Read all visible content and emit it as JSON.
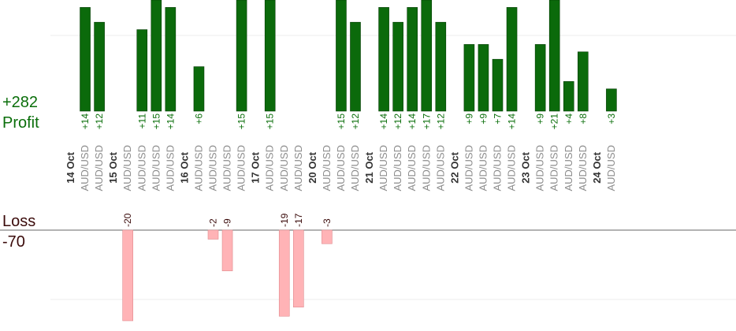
{
  "summary": {
    "profit_total": "+282",
    "profit_label": "Profit",
    "loss_label": "Loss",
    "loss_total": "-70"
  },
  "colors": {
    "profit_bar": "#0b6a0b",
    "loss_bar": "#ffb3b6",
    "profit_text": "#0a6e0a",
    "loss_text": "#3a0a0a",
    "instrument_text": "#8c8c8c",
    "date_text": "#333333"
  },
  "chart_data": {
    "type": "bar",
    "profit_display_max": 15,
    "loss_display_max": 20,
    "columns": [
      {
        "date": "14 Oct"
      },
      {
        "instrument": "AUD/USD",
        "value": 14,
        "label": "+14"
      },
      {
        "instrument": "AUD/USD",
        "value": 12,
        "label": "+12"
      },
      {
        "date": "15 Oct"
      },
      {
        "instrument": "AUD/USD",
        "value": -20,
        "label": "-20"
      },
      {
        "instrument": "AUD/USD",
        "value": 11,
        "label": "+11"
      },
      {
        "instrument": "AUD/USD",
        "value": 15,
        "label": "+15"
      },
      {
        "instrument": "AUD/USD",
        "value": 14,
        "label": "+14"
      },
      {
        "date": "16 Oct"
      },
      {
        "instrument": "AUD/USD",
        "value": 6,
        "label": "+6"
      },
      {
        "instrument": "AUD/USD",
        "value": -2,
        "label": "-2"
      },
      {
        "instrument": "AUD/USD",
        "value": -9,
        "label": "-9"
      },
      {
        "instrument": "AUD/USD",
        "value": 15,
        "label": "+15"
      },
      {
        "date": "17 Oct"
      },
      {
        "instrument": "AUD/USD",
        "value": 15,
        "label": "+15"
      },
      {
        "instrument": "AUD/USD",
        "value": -19,
        "label": "-19"
      },
      {
        "instrument": "AUD/USD",
        "value": -17,
        "label": "-17"
      },
      {
        "date": "20 Oct"
      },
      {
        "instrument": "AUD/USD",
        "value": -3,
        "label": "-3"
      },
      {
        "instrument": "AUD/USD",
        "value": 15,
        "label": "+15"
      },
      {
        "instrument": "AUD/USD",
        "value": 12,
        "label": "+12"
      },
      {
        "date": "21 Oct"
      },
      {
        "instrument": "AUD/USD",
        "value": 14,
        "label": "+14"
      },
      {
        "instrument": "AUD/USD",
        "value": 12,
        "label": "+12"
      },
      {
        "instrument": "AUD/USD",
        "value": 14,
        "label": "+14"
      },
      {
        "instrument": "AUD/USD",
        "value": 17,
        "label": "+17"
      },
      {
        "instrument": "AUD/USD",
        "value": 12,
        "label": "+12"
      },
      {
        "date": "22 Oct"
      },
      {
        "instrument": "AUD/USD",
        "value": 9,
        "label": "+9"
      },
      {
        "instrument": "AUD/USD",
        "value": 9,
        "label": "+9"
      },
      {
        "instrument": "AUD/USD",
        "value": 7,
        "label": "+7"
      },
      {
        "instrument": "AUD/USD",
        "value": 14,
        "label": "+14"
      },
      {
        "date": "23 Oct"
      },
      {
        "instrument": "AUD/USD",
        "value": 9,
        "label": "+9"
      },
      {
        "instrument": "AUD/USD",
        "value": 21,
        "label": "+21"
      },
      {
        "instrument": "AUD/USD",
        "value": 4,
        "label": "+4"
      },
      {
        "instrument": "AUD/USD",
        "value": 8,
        "label": "+8"
      },
      {
        "date": "24 Oct"
      },
      {
        "instrument": "AUD/USD",
        "value": 3,
        "label": "+3"
      }
    ]
  }
}
